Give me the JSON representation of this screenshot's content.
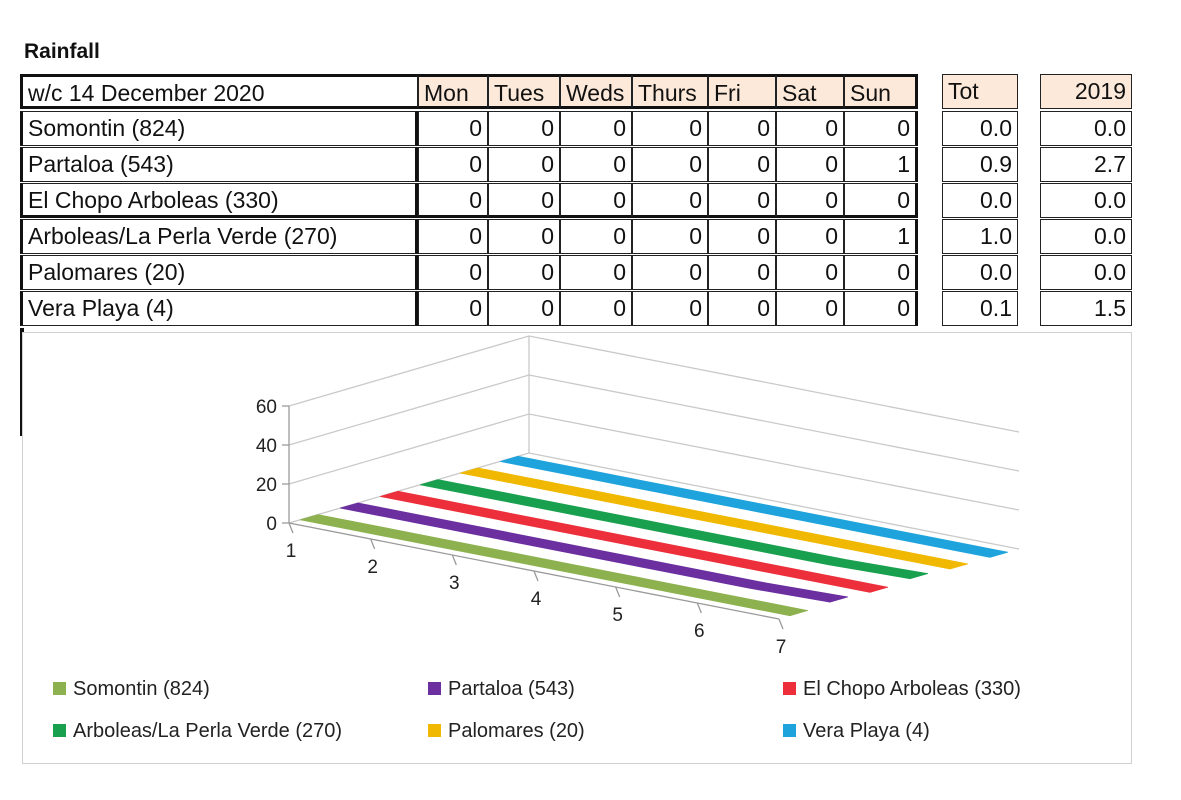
{
  "title": "Rainfall",
  "table": {
    "week_label": "w/c 14 December 2020",
    "day_headers": [
      "Mon",
      "Tues",
      "Weds",
      "Thurs",
      "Fri",
      "Sat",
      "Sun"
    ],
    "total_header": "Tot",
    "prev_year_header": "2019",
    "rows": [
      {
        "name": "Somontin (824)",
        "days": [
          "0",
          "0",
          "0",
          "0",
          "0",
          "0",
          "0"
        ],
        "tot": "0.0",
        "prev": "0.0"
      },
      {
        "name": "Partaloa (543)",
        "days": [
          "0",
          "0",
          "0",
          "0",
          "0",
          "0",
          "1"
        ],
        "tot": "0.9",
        "prev": "2.7"
      },
      {
        "name": "El Chopo Arboleas (330)",
        "days": [
          "0",
          "0",
          "0",
          "0",
          "0",
          "0",
          "0"
        ],
        "tot": "0.0",
        "prev": "0.0"
      },
      {
        "name": "Arboleas/La Perla Verde (270)",
        "days": [
          "0",
          "0",
          "0",
          "0",
          "0",
          "0",
          "1"
        ],
        "tot": "1.0",
        "prev": "0.0"
      },
      {
        "name": "Palomares (20)",
        "days": [
          "0",
          "0",
          "0",
          "0",
          "0",
          "0",
          "0"
        ],
        "tot": "0.0",
        "prev": "0.0"
      },
      {
        "name": "Vera Playa (4)",
        "days": [
          "0",
          "0",
          "0",
          "0",
          "0",
          "0",
          "0"
        ],
        "tot": "0.1",
        "prev": "1.5"
      }
    ]
  },
  "chart_data": {
    "type": "line",
    "title": "",
    "xlabel": "",
    "ylabel": "",
    "x": [
      "1",
      "2",
      "3",
      "4",
      "5",
      "6",
      "7"
    ],
    "y_ticks": [
      "0",
      "20",
      "40",
      "60"
    ],
    "ylim": [
      0,
      60
    ],
    "legend_position": "bottom",
    "series": [
      {
        "name": "Somontin (824)",
        "color": "#8db14e",
        "values": [
          0,
          0,
          0,
          0,
          0,
          0,
          0
        ]
      },
      {
        "name": "Partaloa (543)",
        "color": "#6b2fa0",
        "values": [
          0,
          0,
          0,
          0,
          0,
          0,
          1
        ]
      },
      {
        "name": "El Chopo Arboleas (330)",
        "color": "#ec2f3a",
        "values": [
          0,
          0,
          0,
          0,
          0,
          0,
          0
        ]
      },
      {
        "name": "Arboleas/La Perla Verde (270)",
        "color": "#18a04e",
        "values": [
          0,
          0,
          0,
          0,
          0,
          0,
          1
        ]
      },
      {
        "name": "Palomares (20)",
        "color": "#f0b800",
        "values": [
          0,
          0,
          0,
          0,
          0,
          0,
          0
        ]
      },
      {
        "name": "Vera Playa (4)",
        "color": "#1ea3dc",
        "values": [
          0,
          0,
          0,
          0,
          0,
          0,
          0
        ]
      }
    ]
  }
}
